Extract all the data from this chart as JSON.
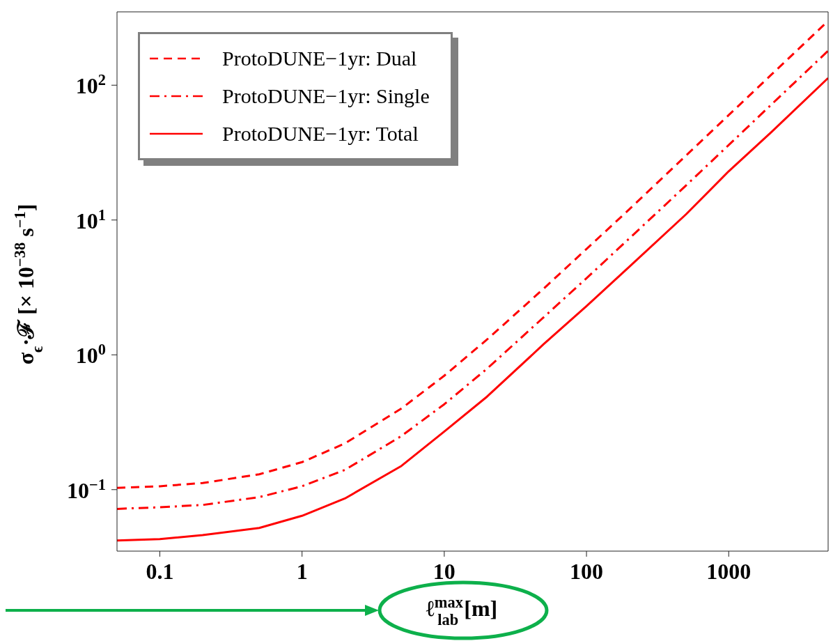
{
  "chart_data": {
    "type": "line",
    "xlabel": "ℓ$^{max}$$_{lab}$ [m]",
    "ylabel": "σ$_{ϵ}$·ℱ [× 10$^{−38}$ s$^{−1}$]",
    "x": [
      0.05,
      0.1,
      0.2,
      0.5,
      1,
      2,
      5,
      10,
      20,
      50,
      100,
      200,
      500,
      1000,
      2000,
      5000
    ],
    "series": [
      {
        "name": "ProtoDUNE−1yr: Dual",
        "color": "#ff0000",
        "line_style": "dashed",
        "values": [
          0.103,
          0.106,
          0.112,
          0.13,
          0.16,
          0.22,
          0.4,
          0.7,
          1.3,
          3.1,
          6.1,
          12,
          30,
          60,
          120,
          300
        ]
      },
      {
        "name": "ProtoDUNE−1yr: Single",
        "color": "#ff0000",
        "line_style": "dashdot",
        "values": [
          0.072,
          0.074,
          0.077,
          0.088,
          0.106,
          0.14,
          0.25,
          0.43,
          0.79,
          1.9,
          3.7,
          7.3,
          18,
          36,
          72,
          180
        ]
      },
      {
        "name": "ProtoDUNE−1yr: Total",
        "color": "#ff0000",
        "line_style": "solid",
        "values": [
          0.042,
          0.043,
          0.046,
          0.052,
          0.064,
          0.086,
          0.15,
          0.27,
          0.49,
          1.2,
          2.3,
          4.5,
          11,
          23,
          45,
          113
        ]
      }
    ],
    "log": "xy",
    "xlim": [
      0.05,
      5000
    ],
    "ylim": [
      0.035,
      350
    ],
    "xticks": [
      0.1,
      1,
      10,
      100,
      1000
    ],
    "yticks": [
      {
        "value": 0.1,
        "label": "10$^{−1}$"
      },
      {
        "value": 1,
        "label": "10$^{0}$"
      },
      {
        "value": 10,
        "label": "10$^{1}$"
      },
      {
        "value": 100,
        "label": "10$^{2}$"
      }
    ],
    "legend": "top left",
    "marker": "none"
  }
}
